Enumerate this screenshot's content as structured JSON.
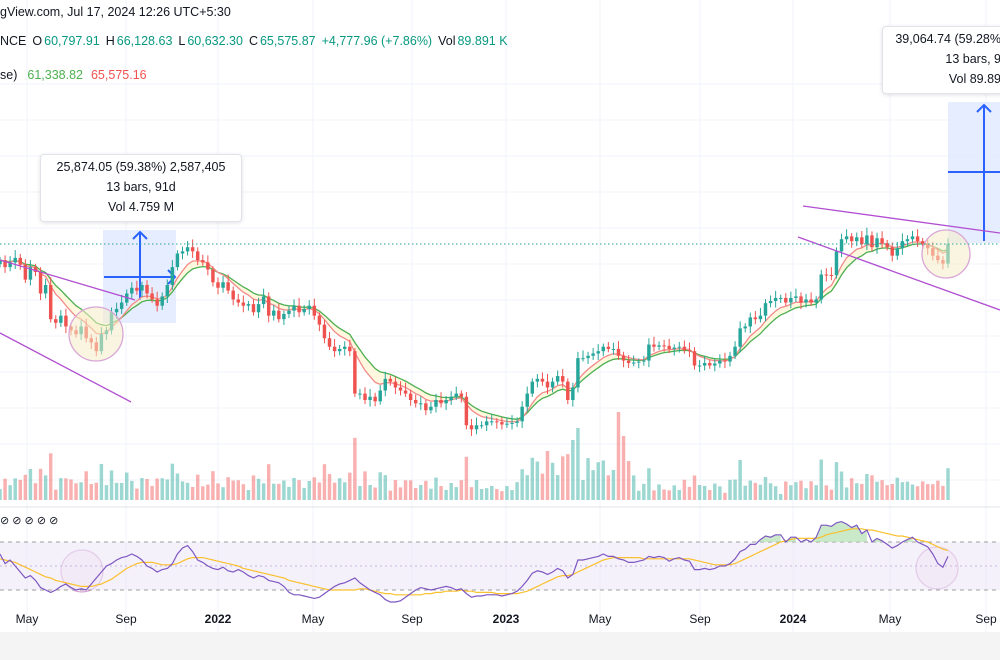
{
  "header": {
    "source": "gView.com, Jul 17, 2024 12:26 UTC+5:30",
    "symbol_tail": "NCE",
    "o_label": "O",
    "o": "60,797.91",
    "h_label": "H",
    "h": "66,128.63",
    "l_label": "L",
    "l": "60,632.30",
    "c_label": "C",
    "c": "65,575.87",
    "change": "+4,777.96 (+7.86%)",
    "vol_label": "Vol",
    "vol": "89.891 K",
    "ma_name": "se)",
    "ma1": "61,338.82",
    "ma2": "65,575.16"
  },
  "colors": {
    "up": "#26a69a",
    "down": "#ef5350",
    "ma_fast": "#f28a8a",
    "ma_slow": "#4caf50",
    "rsi": "#7e57c2",
    "rsi_ma": "#fbc02d",
    "trend": "#b14fd1",
    "measure": "#2962ff"
  },
  "measure_left": {
    "line1": "25,874.05 (59.38%) 2,587,405",
    "line2": "13 bars, 91d",
    "line3": "Vol 4.759 M"
  },
  "measure_right": {
    "line1": "39,064.74 (59.28%",
    "line2": "13 bars, 9",
    "line3": "Vol 89.89"
  },
  "rsi_header": "⊘ ⊘ ⊘ ⊘ ⊘",
  "x_axis": [
    {
      "label": "May",
      "x": 27,
      "bold": false
    },
    {
      "label": "Sep",
      "x": 126,
      "bold": false
    },
    {
      "label": "2022",
      "x": 218,
      "bold": true
    },
    {
      "label": "May",
      "x": 313,
      "bold": false
    },
    {
      "label": "Sep",
      "x": 412,
      "bold": false
    },
    {
      "label": "2023",
      "x": 506,
      "bold": true
    },
    {
      "label": "May",
      "x": 600,
      "bold": false
    },
    {
      "label": "Sep",
      "x": 700,
      "bold": false
    },
    {
      "label": "2024",
      "x": 793,
      "bold": true
    },
    {
      "label": "May",
      "x": 890,
      "bold": false
    },
    {
      "label": "Sep",
      "x": 986,
      "bold": false
    }
  ],
  "chart_data": {
    "type": "candlestick",
    "interval": "weekly",
    "start": "2021-03",
    "closes": [
      58000,
      55000,
      57000,
      59000,
      56000,
      50000,
      55000,
      53000,
      45000,
      48000,
      37000,
      36000,
      38000,
      35000,
      34000,
      33000,
      35000,
      32000,
      31000,
      29000,
      33000,
      34000,
      39000,
      40000,
      42000,
      45000,
      47000,
      46000,
      48000,
      45000,
      43000,
      41000,
      44000,
      48000,
      55000,
      61000,
      62000,
      64000,
      62000,
      58000,
      57000,
      54000,
      49000,
      47000,
      49000,
      46000,
      43000,
      42000,
      41000,
      41500,
      39000,
      41500,
      44000,
      38000,
      39500,
      37000,
      38500,
      39500,
      41000,
      39000,
      40000,
      41000,
      38000,
      35500,
      32000,
      30000,
      29000,
      29500,
      30000,
      29000,
      21000,
      21000,
      20000,
      20500,
      19800,
      21500,
      23500,
      23000,
      22000,
      21500,
      21000,
      20000,
      19500,
      19500,
      18500,
      19000,
      20000,
      19500,
      20000,
      20500,
      21000,
      20500,
      16500,
      16000,
      16500,
      16500,
      17000,
      17000,
      16900,
      16600,
      16700,
      16800,
      17000,
      19000,
      21000,
      23000,
      23500,
      23000,
      22000,
      23000,
      24000,
      23000,
      20000,
      22000,
      27500,
      27500,
      28000,
      28500,
      29000,
      30000,
      29500,
      29500,
      28000,
      27000,
      26500,
      26600,
      26800,
      27000,
      30500,
      30000,
      30300,
      30200,
      29500,
      29800,
      30000,
      29200,
      29000,
      26000,
      26000,
      26500,
      26000,
      26400,
      27000,
      26800,
      28000,
      30000,
      34500,
      35000,
      37500,
      37000,
      38000,
      41800,
      42500,
      43500,
      43500,
      42000,
      43500,
      44000,
      42000,
      43000,
      42000,
      43000,
      52000,
      51800,
      51700,
      62000,
      68000,
      69500,
      67000,
      69000,
      65500,
      70000,
      64000,
      68500,
      66000,
      64000,
      60000,
      63500,
      67000,
      68000,
      69500,
      67000,
      65500,
      63500,
      60000,
      58000,
      56500,
      65600
    ]
  },
  "rsi_data": [
    60,
    52,
    55,
    50,
    45,
    40,
    42,
    38,
    32,
    30,
    28,
    30,
    33,
    35,
    32,
    30,
    31,
    30,
    35,
    40,
    45,
    50,
    52,
    55,
    57,
    58,
    60,
    58,
    55,
    50,
    48,
    45,
    47,
    48,
    52,
    60,
    65,
    67,
    62,
    55,
    53,
    50,
    48,
    47,
    49,
    46,
    45,
    47,
    45,
    42,
    40,
    42,
    41,
    38,
    37,
    36,
    33,
    28,
    26,
    26,
    25,
    24,
    23,
    24,
    27,
    30,
    33,
    35,
    36,
    38,
    40,
    36,
    33,
    30,
    28,
    26,
    22,
    20,
    20,
    21,
    24,
    27,
    30,
    32,
    31,
    30,
    31,
    32,
    33,
    32,
    30,
    31,
    27,
    24,
    25,
    25,
    26,
    26,
    26,
    25,
    26,
    27,
    29,
    33,
    38,
    44,
    46,
    45,
    43,
    45,
    48,
    46,
    40,
    43,
    55,
    55,
    56,
    57,
    58,
    60,
    58,
    58,
    56,
    55,
    53,
    53,
    54,
    55,
    58,
    57,
    58,
    57,
    54,
    56,
    57,
    55,
    54,
    47,
    47,
    48,
    47,
    48,
    50,
    50,
    52,
    56,
    62,
    64,
    68,
    68,
    72,
    75,
    74,
    76,
    76,
    70,
    74,
    74,
    70,
    72,
    70,
    74,
    84,
    84,
    83,
    86,
    87,
    85,
    82,
    84,
    77,
    80,
    70,
    73,
    71,
    68,
    65,
    67,
    70,
    72,
    74,
    70,
    68,
    66,
    60,
    52,
    49,
    58
  ],
  "rsi_ma_data": [
    56,
    55,
    54,
    53,
    51,
    49,
    47,
    45,
    43,
    41,
    40,
    38,
    37,
    36,
    35,
    34,
    33,
    33,
    33,
    34,
    35,
    37,
    39,
    42,
    45,
    48,
    50,
    52,
    53,
    53,
    53,
    52,
    51,
    51,
    51,
    52,
    54,
    56,
    57,
    57,
    57,
    56,
    55,
    54,
    53,
    52,
    51,
    50,
    48,
    47,
    46,
    45,
    44,
    43,
    42,
    41,
    40,
    38,
    37,
    36,
    35,
    34,
    33,
    32,
    31,
    30,
    30,
    30,
    30,
    30,
    30,
    31,
    31,
    30,
    29,
    28,
    27,
    27,
    26,
    26,
    26,
    26,
    26,
    26,
    27,
    27,
    28,
    28,
    29,
    29,
    29,
    30,
    29,
    29,
    28,
    28,
    28,
    28,
    27,
    27,
    27,
    27,
    27,
    28,
    29,
    31,
    33,
    35,
    37,
    39,
    41,
    42,
    42,
    43,
    45,
    47,
    49,
    51,
    53,
    55,
    56,
    57,
    57,
    57,
    57,
    57,
    57,
    56,
    56,
    56,
    56,
    56,
    56,
    56,
    56,
    56,
    56,
    55,
    54,
    53,
    52,
    51,
    51,
    51,
    51,
    52,
    54,
    56,
    58,
    60,
    62,
    64,
    66,
    68,
    70,
    71,
    72,
    73,
    73,
    73,
    73,
    73,
    74,
    76,
    77,
    78,
    79,
    80,
    81,
    81,
    81,
    80,
    80,
    79,
    78,
    77,
    76,
    75,
    75,
    74,
    73,
    72,
    71,
    70,
    68,
    66,
    64,
    63
  ]
}
